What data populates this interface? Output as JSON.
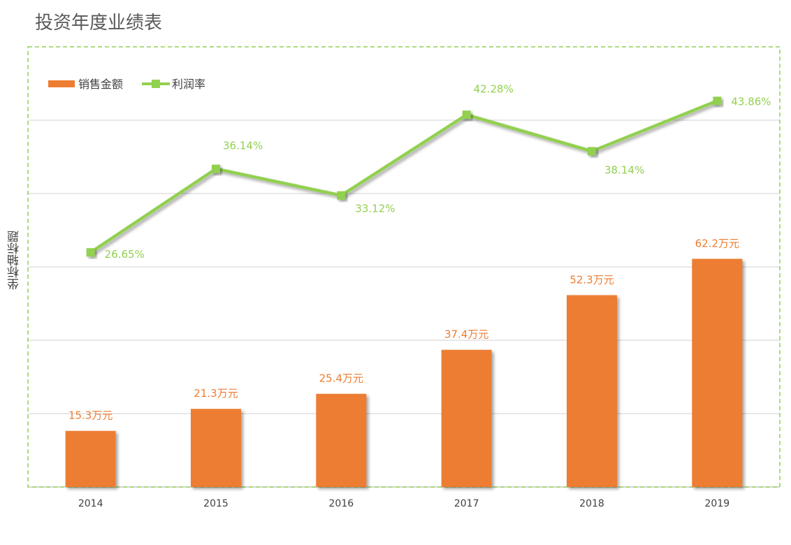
{
  "chart_data": {
    "type": "bar",
    "title": "投资年度业绩表",
    "xlabel": "",
    "ylabel": "坐标轴标题",
    "categories": [
      "2014",
      "2015",
      "2016",
      "2017",
      "2018",
      "2019"
    ],
    "ylim": [
      0,
      120
    ],
    "y2lim": [
      0,
      50
    ],
    "grid": true,
    "legend_position": "top-left",
    "series": [
      {
        "name": "销售金额",
        "type": "bar",
        "axis": "primary",
        "color": "#ED7D31",
        "values": [
          15.3,
          21.3,
          25.4,
          37.4,
          52.3,
          62.2
        ],
        "labels": [
          "15.3万元",
          "21.3万元",
          "25.4万元",
          "37.4万元",
          "52.3万元",
          "62.2万元"
        ]
      },
      {
        "name": "利润率",
        "type": "line",
        "axis": "secondary",
        "color": "#92D050",
        "values": [
          26.65,
          36.14,
          33.12,
          42.28,
          38.14,
          43.86
        ],
        "labels": [
          "26.65%",
          "36.14%",
          "33.12%",
          "42.28%",
          "38.14%",
          "43.86%"
        ]
      }
    ]
  }
}
